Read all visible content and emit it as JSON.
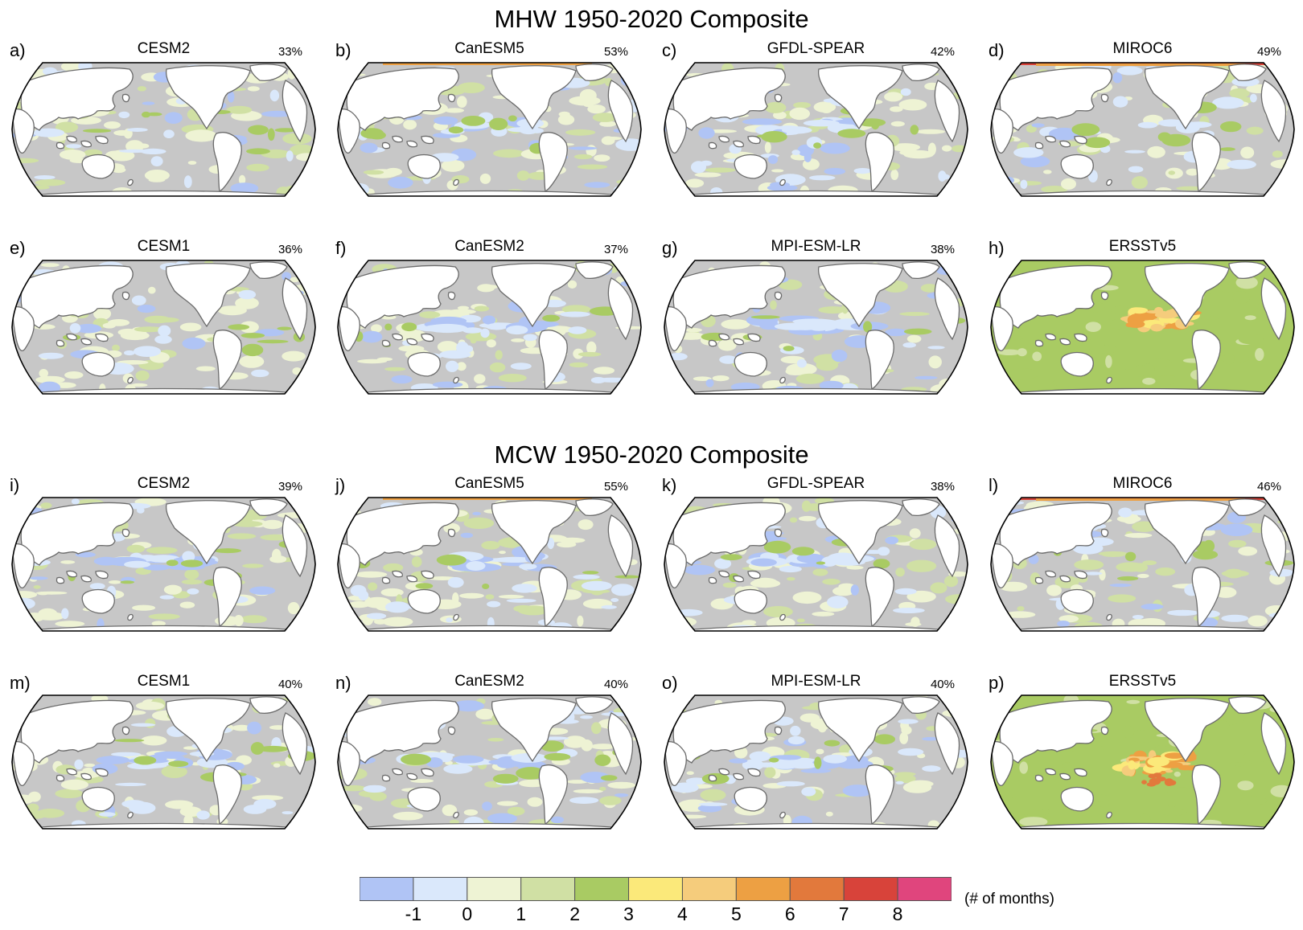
{
  "sections": [
    {
      "title": "MHW 1950-2020 Composite",
      "panels": [
        {
          "letter": "a)",
          "model": "CESM2",
          "pct": "33%",
          "style": "model",
          "band": "neutral"
        },
        {
          "letter": "b)",
          "model": "CanESM5",
          "pct": "53%",
          "style": "model",
          "band": "cool"
        },
        {
          "letter": "c)",
          "model": "GFDL-SPEAR",
          "pct": "42%",
          "style": "model",
          "band": "cool"
        },
        {
          "letter": "d)",
          "model": "MIROC6",
          "pct": "49%",
          "style": "model",
          "band": "warm"
        },
        {
          "letter": "e)",
          "model": "CESM1",
          "pct": "36%",
          "style": "model",
          "band": "neutral"
        },
        {
          "letter": "f)",
          "model": "CanESM2",
          "pct": "37%",
          "style": "model",
          "band": "cool"
        },
        {
          "letter": "g)",
          "model": "MPI-ESM-LR",
          "pct": "38%",
          "style": "model",
          "band": "cool"
        },
        {
          "letter": "h)",
          "model": "ERSSTv5",
          "pct": "",
          "style": "obs",
          "band": "none"
        }
      ]
    },
    {
      "title": "MCW 1950-2020 Composite",
      "panels": [
        {
          "letter": "i)",
          "model": "CESM2",
          "pct": "39%",
          "style": "model",
          "band": "cool"
        },
        {
          "letter": "j)",
          "model": "CanESM5",
          "pct": "55%",
          "style": "model",
          "band": "cool"
        },
        {
          "letter": "k)",
          "model": "GFDL-SPEAR",
          "pct": "38%",
          "style": "model",
          "band": "cool"
        },
        {
          "letter": "l)",
          "model": "MIROC6",
          "pct": "46%",
          "style": "model",
          "band": "warm"
        },
        {
          "letter": "m)",
          "model": "CESM1",
          "pct": "40%",
          "style": "model",
          "band": "cool"
        },
        {
          "letter": "n)",
          "model": "CanESM2",
          "pct": "40%",
          "style": "model",
          "band": "cool"
        },
        {
          "letter": "o)",
          "model": "MPI-ESM-LR",
          "pct": "40%",
          "style": "model",
          "band": "cool"
        },
        {
          "letter": "p)",
          "model": "ERSSTv5",
          "pct": "",
          "style": "obs",
          "band": "none"
        }
      ]
    }
  ],
  "colorbar": {
    "colors": [
      "#b0c4f5",
      "#dae8fb",
      "#eef3d4",
      "#d0e0a4",
      "#a9cb63",
      "#fbe97a",
      "#f5cc7c",
      "#eda043",
      "#e2793c",
      "#d8433a",
      "#e0457d"
    ],
    "tick_labels": [
      "-1",
      "0",
      "1",
      "2",
      "3",
      "4",
      "5",
      "6",
      "7",
      "8"
    ],
    "unit": "(# of months)"
  },
  "palette": {
    "ocean_gray": "#c7c7c7",
    "land": "#ffffff",
    "coast": "#6b6b6b",
    "obs_green": "#a9cb63"
  }
}
